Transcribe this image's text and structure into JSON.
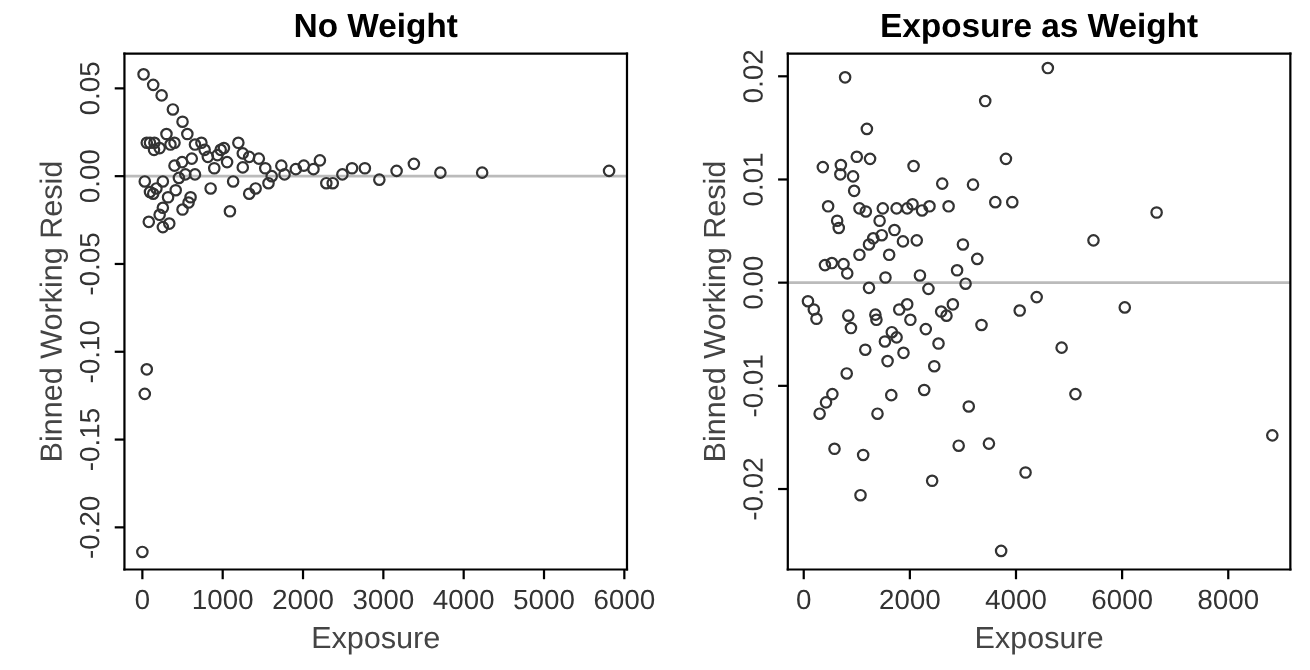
{
  "chart_data": [
    {
      "type": "scatter",
      "title": "No Weight",
      "xlabel": "Exposure",
      "ylabel": "Binned Working Resid",
      "marker": "circle",
      "grid": false,
      "xlim": [
        -223,
        6033
      ],
      "ylim": [
        -0.224,
        0.0698
      ],
      "xticks": [
        0,
        1000,
        2000,
        3000,
        4000,
        5000,
        6000
      ],
      "yticks": [
        {
          "value": -0.2,
          "label": "-0.20"
        },
        {
          "value": -0.15,
          "label": "-0.15"
        },
        {
          "value": -0.1,
          "label": "-0.10"
        },
        {
          "value": -0.05,
          "label": "-0.05"
        },
        {
          "value": 0,
          "label": "0.00"
        },
        {
          "value": 0.05,
          "label": "0.05"
        }
      ],
      "ref_lines": [
        {
          "axis": "y",
          "value": 0,
          "color": "#bbbbbb"
        }
      ],
      "series": [
        {
          "color": "#333333",
          "x": [
            15,
            135,
            240,
            380,
            500,
            560,
            300,
            55,
            95,
            150,
            400,
            350,
            145,
            215,
            735,
            655,
            775,
            1015,
            1195,
            975,
            615,
            815,
            935,
            1250,
            1450,
            1330,
            495,
            400,
            895,
            1250,
            1055,
            1730,
            2010,
            2210,
            1530,
            1910,
            2130,
            2490,
            2610,
            2770,
            3165,
            3380,
            3710,
            4230,
            5810,
            2950,
            2290,
            2370,
            1610,
            1770,
            1570,
            1130,
            1410,
            1330,
            1090,
            850,
            600,
            575,
            500,
            415,
            320,
            255,
            215,
            255,
            335,
            80,
            95,
            175,
            30,
            135,
            255,
            455,
            535,
            655,
            55,
            30,
            0
          ],
          "values": [
            0.058,
            0.052,
            0.046,
            0.038,
            0.031,
            0.024,
            0.024,
            0.019,
            0.019,
            0.019,
            0.019,
            0.018,
            0.015,
            0.016,
            0.019,
            0.018,
            0.015,
            0.016,
            0.019,
            0.015,
            0.01,
            0.011,
            0.012,
            0.013,
            0.01,
            0.011,
            0.008,
            0.006,
            0.0045,
            0.005,
            0.008,
            0.006,
            0.006,
            0.009,
            0.0045,
            0.004,
            0.004,
            0.001,
            0.0045,
            0.0045,
            0.003,
            0.007,
            0.002,
            0.002,
            0.003,
            -0.002,
            -0.004,
            -0.004,
            0.0,
            0.001,
            -0.004,
            -0.003,
            -0.007,
            -0.01,
            -0.02,
            -0.007,
            -0.012,
            -0.015,
            -0.019,
            -0.008,
            -0.012,
            -0.018,
            -0.022,
            -0.029,
            -0.027,
            -0.026,
            -0.009,
            -0.007,
            -0.003,
            -0.01,
            -0.003,
            -0.001,
            0.001,
            0.001,
            -0.11,
            -0.124,
            -0.214
          ]
        }
      ]
    },
    {
      "type": "scatter",
      "title": "Exposure as Weight",
      "xlabel": "Exposure",
      "ylabel": "Binned Working Resid",
      "marker": "circle",
      "grid": false,
      "xlim": [
        -300,
        9170
      ],
      "ylim": [
        -0.0278,
        0.0222
      ],
      "xticks": [
        0,
        2000,
        4000,
        6000,
        8000
      ],
      "yticks": [
        {
          "value": -0.02,
          "label": "-0.02"
        },
        {
          "value": -0.01,
          "label": "-0.01"
        },
        {
          "value": 0,
          "label": "0.00"
        },
        {
          "value": 0.01,
          "label": "0.01"
        },
        {
          "value": 0.02,
          "label": "0.02"
        }
      ],
      "ref_lines": [
        {
          "axis": "y",
          "value": 0,
          "color": "#bbbbbb"
        }
      ],
      "series": [
        {
          "color": "#333333",
          "x": [
            780,
            4600,
            3420,
            1190,
            360,
            700,
            1000,
            1250,
            3810,
            2070,
            930,
            690,
            2610,
            3190,
            950,
            3610,
            3930,
            460,
            1050,
            1170,
            1490,
            1750,
            1950,
            2050,
            2230,
            2370,
            2730,
            6650,
            630,
            660,
            1430,
            1710,
            1470,
            1310,
            1230,
            2130,
            1870,
            5460,
            3000,
            1610,
            1050,
            3270,
            2890,
            400,
            530,
            750,
            820,
            2190,
            1540,
            1230,
            3050,
            2350,
            80,
            190,
            240,
            840,
            1350,
            1370,
            890,
            1800,
            1950,
            2010,
            1660,
            1750,
            1530,
            1580,
            1880,
            2300,
            2590,
            2690,
            2810,
            2540,
            2460,
            3350,
            4070,
            4390,
            6050,
            4860,
            1160,
            810,
            540,
            420,
            300,
            1390,
            1650,
            2270,
            5120,
            3110,
            580,
            1120,
            2920,
            3490,
            1070,
            2420,
            4180,
            8830,
            3720
          ],
          "values": [
            0.0199,
            0.0208,
            0.0176,
            0.0149,
            0.0112,
            0.0114,
            0.0122,
            0.012,
            0.012,
            0.0113,
            0.0103,
            0.0105,
            0.0096,
            0.0095,
            0.0089,
            0.0078,
            0.0078,
            0.0074,
            0.0072,
            0.0069,
            0.0072,
            0.0072,
            0.0072,
            0.0076,
            0.007,
            0.0074,
            0.0074,
            0.0068,
            0.006,
            0.0053,
            0.006,
            0.0051,
            0.0046,
            0.0043,
            0.0037,
            0.0041,
            0.004,
            0.0041,
            0.0037,
            0.0027,
            0.0027,
            0.0023,
            0.0012,
            0.0017,
            0.0019,
            0.0018,
            0.0009,
            0.0007,
            0.0005,
            -0.0005,
            -0.0001,
            -0.0006,
            -0.0018,
            -0.0026,
            -0.0035,
            -0.0032,
            -0.0031,
            -0.0036,
            -0.0044,
            -0.0026,
            -0.0021,
            -0.0036,
            -0.0048,
            -0.0053,
            -0.0057,
            -0.0076,
            -0.0068,
            -0.0045,
            -0.0028,
            -0.0032,
            -0.0021,
            -0.0059,
            -0.0081,
            -0.0041,
            -0.0027,
            -0.0014,
            -0.0024,
            -0.0063,
            -0.0065,
            -0.0088,
            -0.0108,
            -0.0116,
            -0.0127,
            -0.0127,
            -0.0109,
            -0.0104,
            -0.0108,
            -0.012,
            -0.0161,
            -0.0167,
            -0.0158,
            -0.0156,
            -0.0206,
            -0.0192,
            -0.0184,
            -0.0148,
            -0.026
          ]
        }
      ]
    }
  ]
}
